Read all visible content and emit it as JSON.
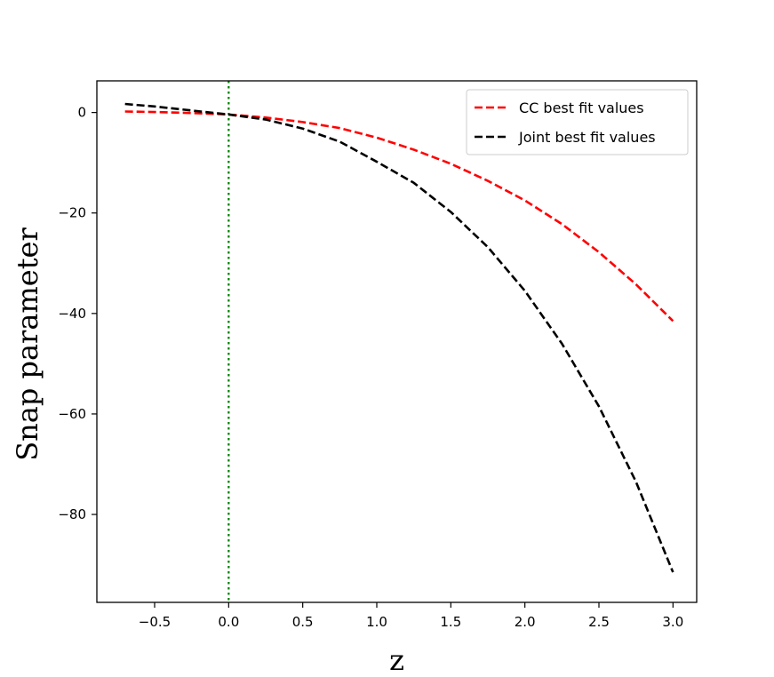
{
  "chart_data": {
    "type": "line",
    "title": "",
    "xlabel": "z",
    "ylabel": "Snap parameter",
    "xlim": [
      -0.89,
      3.16
    ],
    "ylim": [
      -97.5,
      6.3
    ],
    "x_ticks": [
      -0.5,
      0.0,
      0.5,
      1.0,
      1.5,
      2.0,
      2.5,
      3.0
    ],
    "x_tick_labels": [
      "−0.5",
      "0.0",
      "0.5",
      "1.0",
      "1.5",
      "2.0",
      "2.5",
      "3.0"
    ],
    "y_ticks": [
      0,
      -20,
      -40,
      -60,
      -80
    ],
    "y_tick_labels": [
      "0",
      "−20",
      "−40",
      "−60",
      "−80"
    ],
    "grid": false,
    "legend_position": "top-right",
    "reference_lines": [
      {
        "orientation": "vertical",
        "x": 0.0,
        "color": "#008000",
        "style": "dotted"
      }
    ],
    "series": [
      {
        "name": "CC best fit values",
        "color": "#ff0000",
        "style": "dashed",
        "x": [
          -0.7,
          -0.5,
          -0.25,
          0.0,
          0.25,
          0.5,
          0.75,
          1.0,
          1.25,
          1.5,
          1.75,
          2.0,
          2.25,
          2.5,
          2.75,
          3.0
        ],
        "y": [
          0.2,
          0.1,
          -0.1,
          -0.4,
          -1.0,
          -1.9,
          -3.1,
          -5.0,
          -7.4,
          -10.2,
          -13.6,
          -17.5,
          -22.2,
          -27.8,
          -34.2,
          -41.5
        ]
      },
      {
        "name": "Joint best fit values",
        "color": "#000000",
        "style": "dashed",
        "x": [
          -0.7,
          -0.5,
          -0.25,
          0.0,
          0.25,
          0.5,
          0.75,
          1.0,
          1.25,
          1.5,
          1.75,
          2.0,
          2.25,
          2.5,
          2.75,
          3.0
        ],
        "y": [
          1.7,
          1.2,
          0.4,
          -0.4,
          -1.4,
          -3.2,
          -5.8,
          -9.8,
          -14.0,
          -19.8,
          -26.8,
          -35.5,
          -46.0,
          -58.5,
          -73.5,
          -91.5
        ]
      }
    ]
  }
}
